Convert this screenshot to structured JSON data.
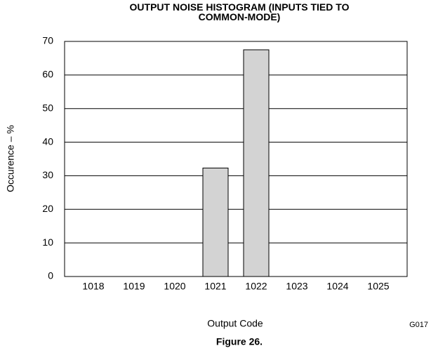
{
  "chart_data": {
    "type": "bar",
    "title": "OUTPUT NOISE HISTOGRAM (INPUTS TIED TO COMMON-MODE)",
    "xlabel": "Output Code",
    "ylabel": "Occurence – %",
    "annotation": "G017",
    "caption": "Figure 26.",
    "categories": [
      "1018",
      "1019",
      "1020",
      "1021",
      "1022",
      "1023",
      "1024",
      "1025"
    ],
    "values": [
      0,
      0,
      0,
      32.3,
      67.5,
      0,
      0,
      0
    ],
    "color": "#d3d3d3",
    "ylim": [
      0,
      70
    ],
    "yticks": [
      0,
      10,
      20,
      30,
      40,
      50,
      60,
      70
    ],
    "grid": true
  }
}
